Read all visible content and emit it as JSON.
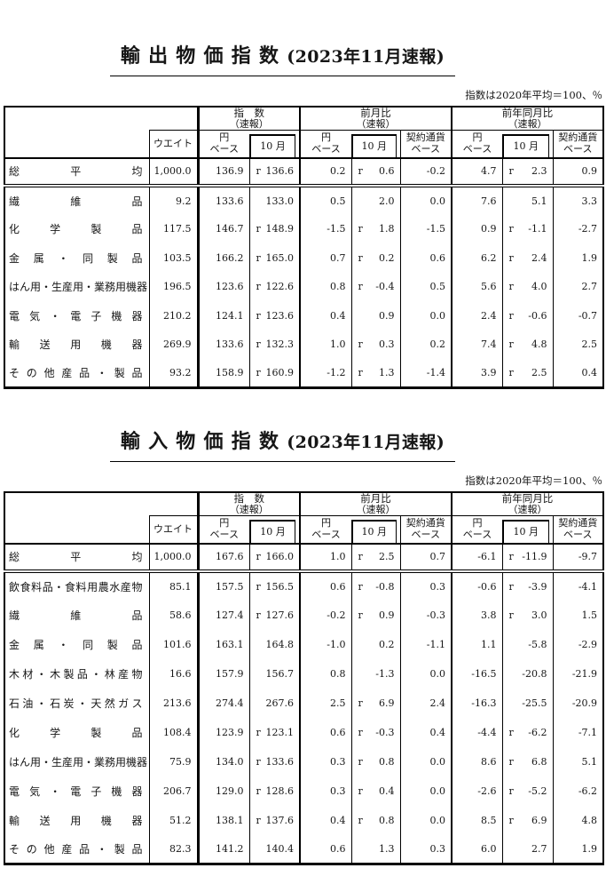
{
  "tables": [
    {
      "id": "export",
      "title_main": "輸出物価指数",
      "title_paren": "(2023年11月速報)",
      "note": "指数は2020年平均＝100、％",
      "header": {
        "weight": "ウエイト",
        "groups": [
          {
            "line1": "指　数",
            "line2": "（速報）"
          },
          {
            "line1": "前月比",
            "line2": "（速報）"
          },
          {
            "line1": "前年同月比",
            "line2": "（速報）"
          }
        ],
        "yen": {
          "line1": "円",
          "line2": "ベース"
        },
        "month": "10 月",
        "contract": {
          "line1": "契約通貨",
          "line2": "ベース"
        }
      },
      "rows": [
        {
          "label": "総平均",
          "total": true,
          "cells": [
            "1,000.0",
            "136.9",
            "r 136.6",
            "0.2",
            "r 0.6",
            "-0.2",
            "4.7",
            "r 2.3",
            "0.9"
          ]
        },
        {
          "label": "繊維品",
          "cells": [
            "9.2",
            "133.6",
            "133.0",
            "0.5",
            "2.0",
            "0.0",
            "7.6",
            "5.1",
            "3.3"
          ]
        },
        {
          "label": "化学製品",
          "cells": [
            "117.5",
            "146.7",
            "r 148.9",
            "-1.5",
            "r 1.8",
            "-1.5",
            "0.9",
            "r -1.1",
            "-2.7"
          ]
        },
        {
          "label": "金属・同製品",
          "cells": [
            "103.5",
            "166.2",
            "r 165.0",
            "0.7",
            "r 0.2",
            "0.6",
            "6.2",
            "r 2.4",
            "1.9"
          ]
        },
        {
          "label": "はん用・生産用・業務用機器",
          "cells": [
            "196.5",
            "123.6",
            "r 122.6",
            "0.8",
            "r -0.4",
            "0.5",
            "5.6",
            "r 4.0",
            "2.7"
          ]
        },
        {
          "label": "電気・電子機器",
          "cells": [
            "210.2",
            "124.1",
            "r 123.6",
            "0.4",
            "0.9",
            "0.0",
            "2.4",
            "r -0.6",
            "-0.7"
          ]
        },
        {
          "label": "輸送用機器",
          "cells": [
            "269.9",
            "133.6",
            "r 132.3",
            "1.0",
            "r 0.3",
            "0.2",
            "7.4",
            "r 4.8",
            "2.5"
          ]
        },
        {
          "label": "その他産品・製品",
          "cells": [
            "93.2",
            "158.9",
            "r 160.9",
            "-1.2",
            "r 1.3",
            "-1.4",
            "3.9",
            "r 2.5",
            "0.4"
          ]
        }
      ]
    },
    {
      "id": "import",
      "title_main": "輸入物価指数",
      "title_paren": "(2023年11月速報)",
      "note": "指数は2020年平均＝100、％",
      "header": {
        "weight": "ウエイト",
        "groups": [
          {
            "line1": "指　数",
            "line2": "（速報）"
          },
          {
            "line1": "前月比",
            "line2": "（速報）"
          },
          {
            "line1": "前年同月比",
            "line2": "（速報）"
          }
        ],
        "yen": {
          "line1": "円",
          "line2": "ベース"
        },
        "month": "10 月",
        "contract": {
          "line1": "契約通貨",
          "line2": "ベース"
        }
      },
      "rows": [
        {
          "label": "総平均",
          "total": true,
          "cells": [
            "1,000.0",
            "167.6",
            "r 166.0",
            "1.0",
            "r 2.5",
            "0.7",
            "-6.1",
            "r -11.9",
            "-9.7"
          ]
        },
        {
          "label": "飲食料品・食料用農水産物",
          "cells": [
            "85.1",
            "157.5",
            "r 156.5",
            "0.6",
            "r -0.8",
            "0.3",
            "-0.6",
            "r -3.9",
            "-4.1"
          ]
        },
        {
          "label": "繊維品",
          "cells": [
            "58.6",
            "127.4",
            "r 127.6",
            "-0.2",
            "r 0.9",
            "-0.3",
            "3.8",
            "r 3.0",
            "1.5"
          ]
        },
        {
          "label": "金属・同製品",
          "cells": [
            "101.6",
            "163.1",
            "164.8",
            "-1.0",
            "0.2",
            "-1.1",
            "1.1",
            "-5.8",
            "-2.9"
          ]
        },
        {
          "label": "木材・木製品・林産物",
          "cells": [
            "16.6",
            "157.9",
            "156.7",
            "0.8",
            "-1.3",
            "0.0",
            "-16.5",
            "-20.8",
            "-21.9"
          ]
        },
        {
          "label": "石油・石炭・天然ガス",
          "cells": [
            "213.6",
            "274.4",
            "267.6",
            "2.5",
            "r 6.9",
            "2.4",
            "-16.3",
            "-25.5",
            "-20.9"
          ]
        },
        {
          "label": "化学製品",
          "cells": [
            "108.4",
            "123.9",
            "r 123.1",
            "0.6",
            "r -0.3",
            "0.4",
            "-4.4",
            "r -6.2",
            "-7.1"
          ]
        },
        {
          "label": "はん用・生産用・業務用機器",
          "cells": [
            "75.9",
            "134.0",
            "r 133.6",
            "0.3",
            "r 0.8",
            "0.0",
            "8.6",
            "r 6.8",
            "5.1"
          ]
        },
        {
          "label": "電気・電子機器",
          "cells": [
            "206.7",
            "129.0",
            "r 128.6",
            "0.3",
            "r 0.4",
            "0.0",
            "-2.6",
            "r -5.2",
            "-6.2"
          ]
        },
        {
          "label": "輸送用機器",
          "cells": [
            "51.2",
            "138.1",
            "r 137.6",
            "0.4",
            "r 0.8",
            "0.0",
            "8.5",
            "r 6.9",
            "4.8"
          ]
        },
        {
          "label": "その他産品・製品",
          "cells": [
            "82.3",
            "141.2",
            "140.4",
            "0.6",
            "1.3",
            "0.3",
            "6.0",
            "2.7",
            "1.9"
          ]
        }
      ]
    }
  ]
}
